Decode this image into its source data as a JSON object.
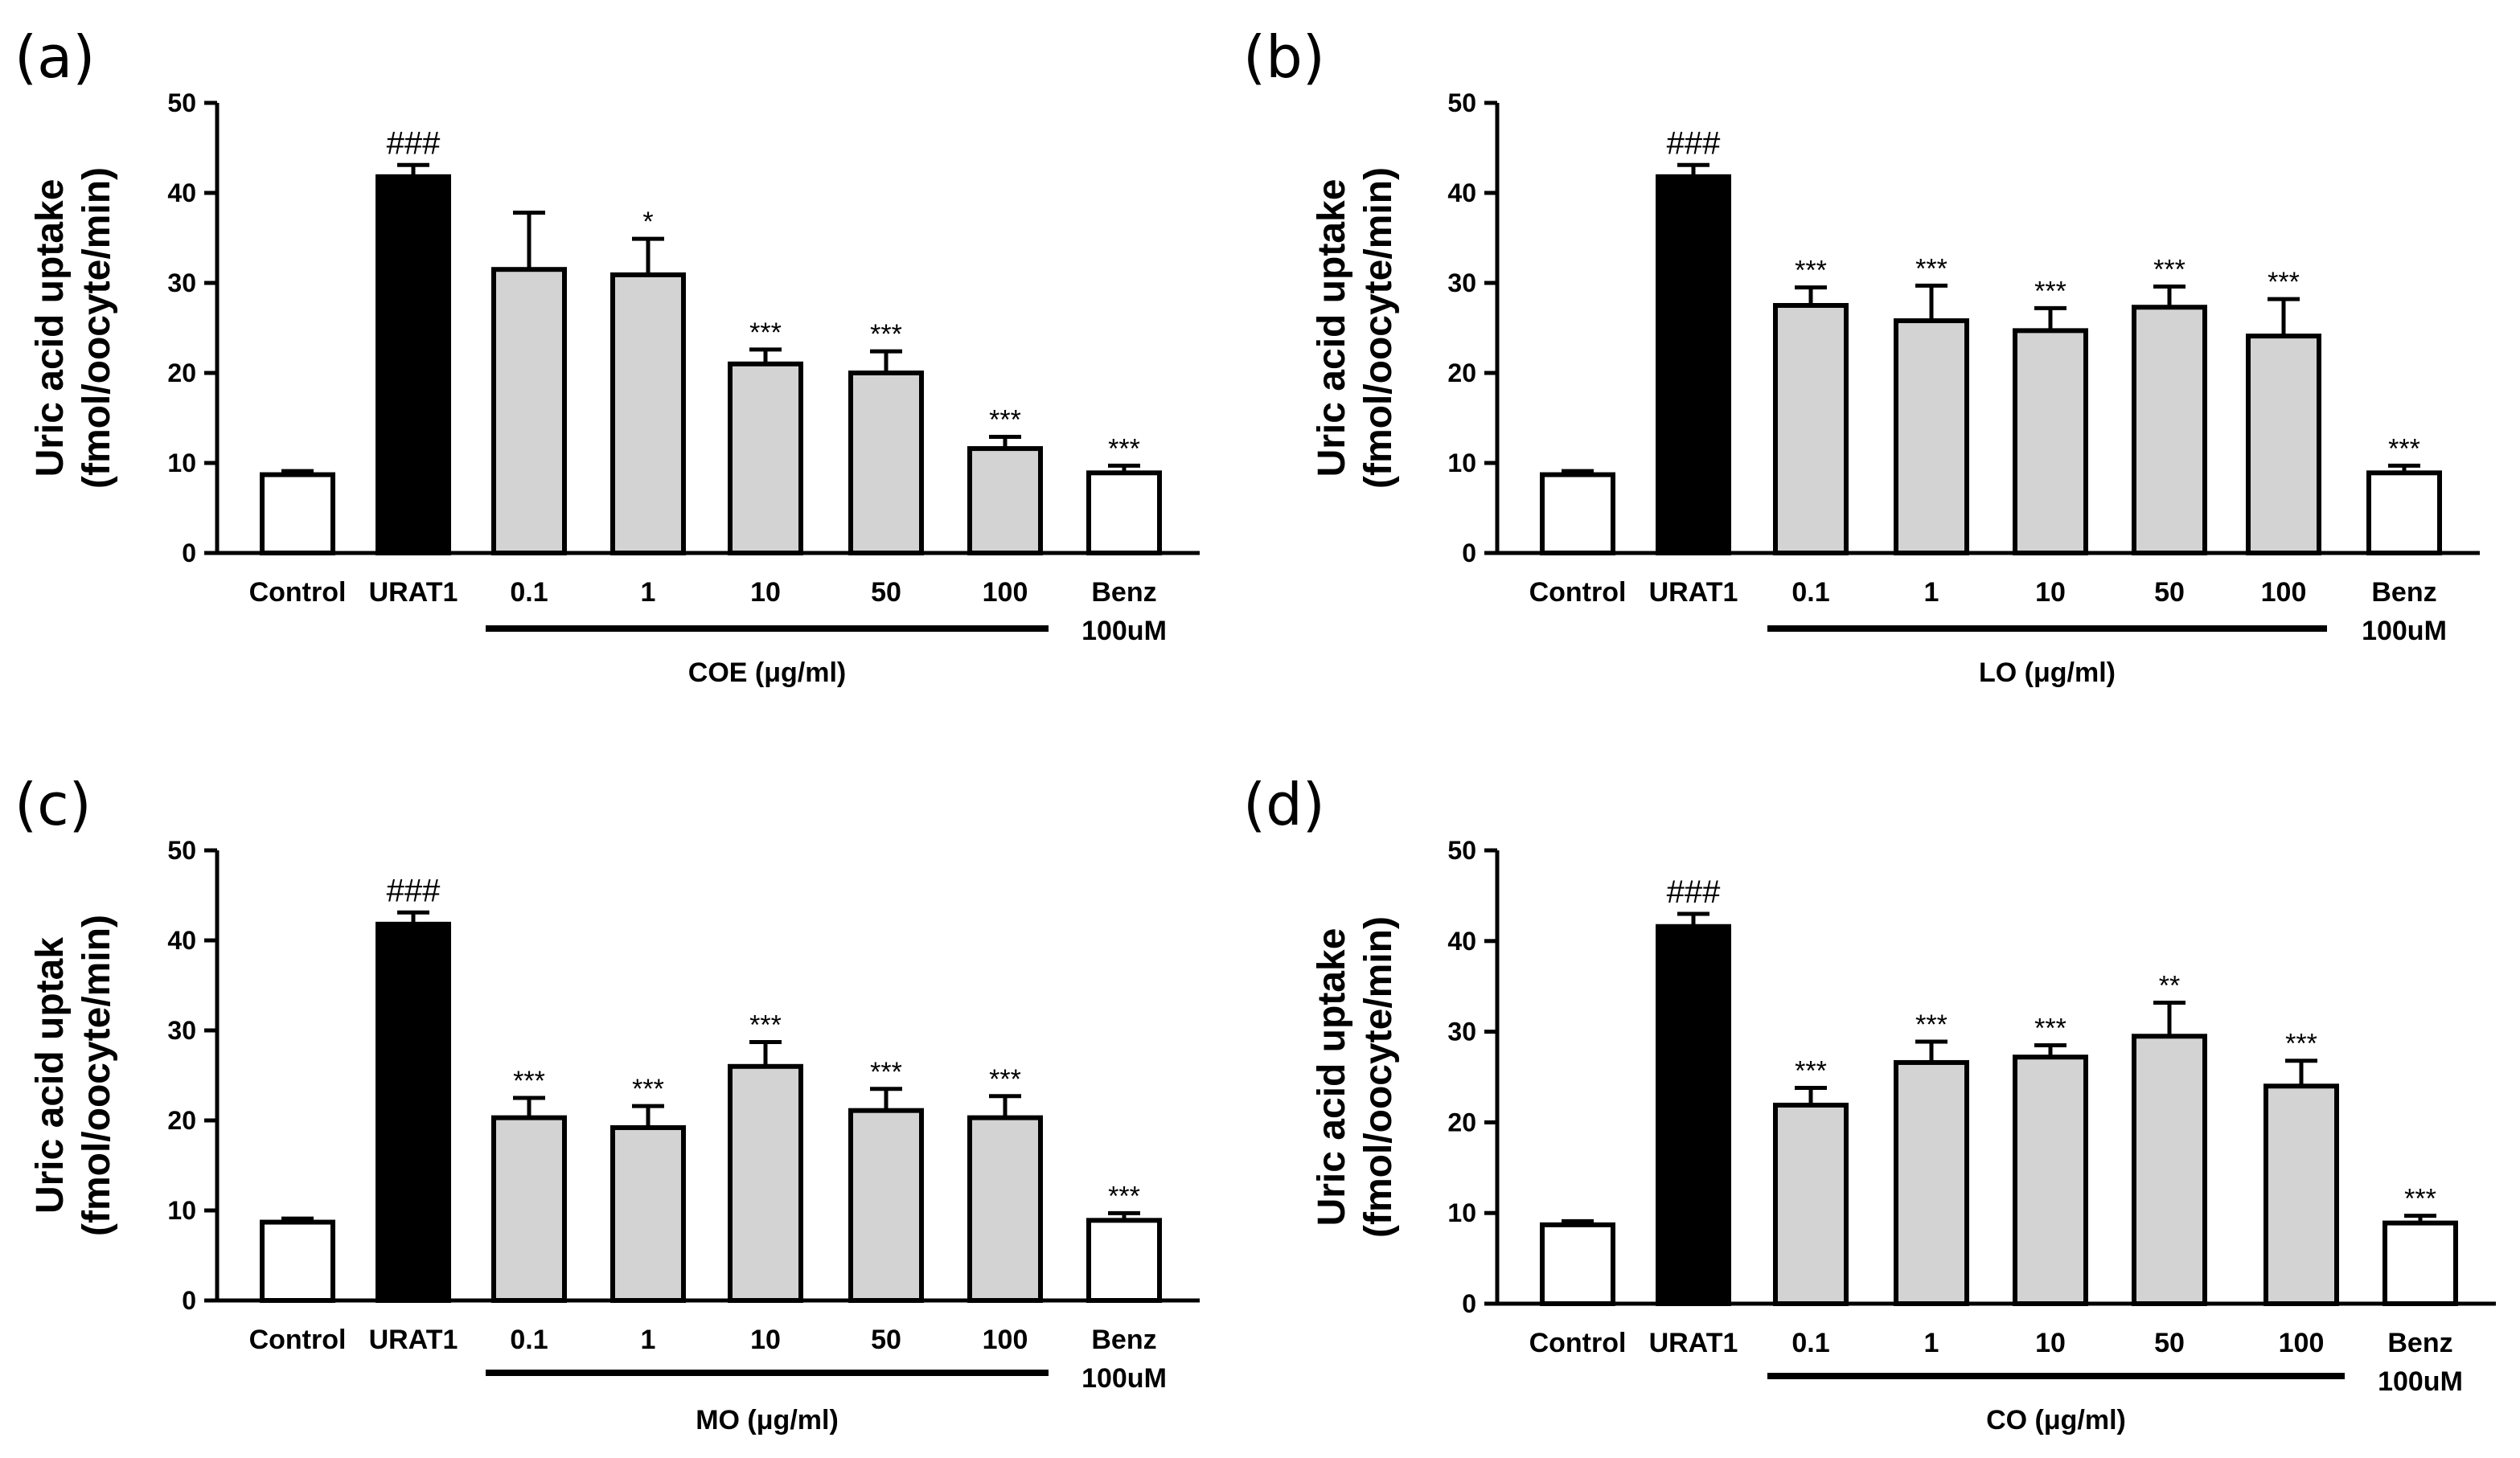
{
  "chart_data": [
    {
      "panel": "(a)",
      "type": "bar",
      "ylabel_line1": "Uric acid uptake",
      "ylabel_line2": "(fmol/oocyte/min)",
      "ylim": [
        0,
        50
      ],
      "yticks": [
        "0",
        "10",
        "20",
        "30",
        "40",
        "50"
      ],
      "categories": [
        "Control",
        "URAT1",
        "0.1",
        "1",
        "10",
        "50",
        "100",
        "Benz"
      ],
      "category_line2": [
        "",
        "",
        "",
        "",
        "",
        "",
        "",
        "100uM"
      ],
      "values": [
        8.7,
        41.8,
        31.5,
        30.9,
        21.0,
        20.0,
        11.6,
        8.9
      ],
      "errors": [
        0.4,
        1.3,
        6.3,
        4.0,
        1.6,
        2.4,
        1.3,
        0.8
      ],
      "fills": [
        "#ffffff",
        "#000000",
        "#d3d3d3",
        "#d3d3d3",
        "#d3d3d3",
        "#d3d3d3",
        "#d3d3d3",
        "#ffffff"
      ],
      "significance": [
        "",
        "###",
        "",
        "*",
        "***",
        "***",
        "***",
        "***"
      ],
      "group_label": "COE (μg/ml)",
      "group_span": [
        2,
        6
      ]
    },
    {
      "panel": "(b)",
      "type": "bar",
      "ylabel_line1": "Uric acid uptake",
      "ylabel_line2": "(fmol/oocyte/min)",
      "ylim": [
        0,
        50
      ],
      "yticks": [
        "0",
        "10",
        "20",
        "30",
        "40",
        "50"
      ],
      "categories": [
        "Control",
        "URAT1",
        "0.1",
        "1",
        "10",
        "50",
        "100",
        "Benz"
      ],
      "category_line2": [
        "",
        "",
        "",
        "",
        "",
        "",
        "",
        "100uM"
      ],
      "values": [
        8.7,
        41.8,
        27.5,
        25.8,
        24.7,
        27.3,
        24.1,
        8.9
      ],
      "errors": [
        0.4,
        1.3,
        2.0,
        3.9,
        2.5,
        2.3,
        4.1,
        0.8
      ],
      "fills": [
        "#ffffff",
        "#000000",
        "#d3d3d3",
        "#d3d3d3",
        "#d3d3d3",
        "#d3d3d3",
        "#d3d3d3",
        "#ffffff"
      ],
      "significance": [
        "",
        "###",
        "***",
        "***",
        "***",
        "***",
        "***",
        "***"
      ],
      "group_label": "LO (μg/ml)",
      "group_span": [
        2,
        6
      ]
    },
    {
      "panel": "(c)",
      "type": "bar",
      "ylabel_line1": "Uric acid uptak",
      "ylabel_line2": "(fmol/oocyte/min)",
      "ylim": [
        0,
        50
      ],
      "yticks": [
        "0",
        "10",
        "20",
        "30",
        "40",
        "50"
      ],
      "categories": [
        "Control",
        "URAT1",
        "0.1",
        "1",
        "10",
        "50",
        "100",
        "Benz"
      ],
      "category_line2": [
        "",
        "",
        "",
        "",
        "",
        "",
        "",
        "100uM"
      ],
      "values": [
        8.7,
        41.8,
        20.3,
        19.2,
        26.0,
        21.1,
        20.3,
        8.9
      ],
      "errors": [
        0.4,
        1.3,
        2.2,
        2.4,
        2.7,
        2.4,
        2.4,
        0.8
      ],
      "fills": [
        "#ffffff",
        "#000000",
        "#d3d3d3",
        "#d3d3d3",
        "#d3d3d3",
        "#d3d3d3",
        "#d3d3d3",
        "#ffffff"
      ],
      "significance": [
        "",
        "###",
        "***",
        "***",
        "***",
        "***",
        "***",
        "***"
      ],
      "group_label": "MO (μg/ml)",
      "group_span": [
        2,
        6
      ]
    },
    {
      "panel": "(d)",
      "type": "bar",
      "ylabel_line1": "Uric acid uptake",
      "ylabel_line2": "(fmol/oocyte/min)",
      "ylim": [
        0,
        50
      ],
      "yticks": [
        "0",
        "10",
        "20",
        "30",
        "40",
        "50"
      ],
      "categories": [
        "Control",
        "URAT1",
        "0.1",
        "1",
        "10",
        "50",
        "100",
        "Benz"
      ],
      "category_line2": [
        "",
        "",
        "",
        "",
        "",
        "",
        "",
        "100uM"
      ],
      "values": [
        8.7,
        41.6,
        21.9,
        26.6,
        27.2,
        29.5,
        24.0,
        8.9
      ],
      "errors": [
        0.4,
        1.4,
        1.9,
        2.3,
        1.3,
        3.7,
        2.8,
        0.8
      ],
      "fills": [
        "#ffffff",
        "#000000",
        "#d3d3d3",
        "#d3d3d3",
        "#d3d3d3",
        "#d3d3d3",
        "#d3d3d3",
        "#ffffff"
      ],
      "significance": [
        "",
        "###",
        "***",
        "***",
        "***",
        "**",
        "***",
        "***"
      ],
      "group_label": "CO (μg/ml)",
      "group_span": [
        2,
        6
      ]
    }
  ]
}
